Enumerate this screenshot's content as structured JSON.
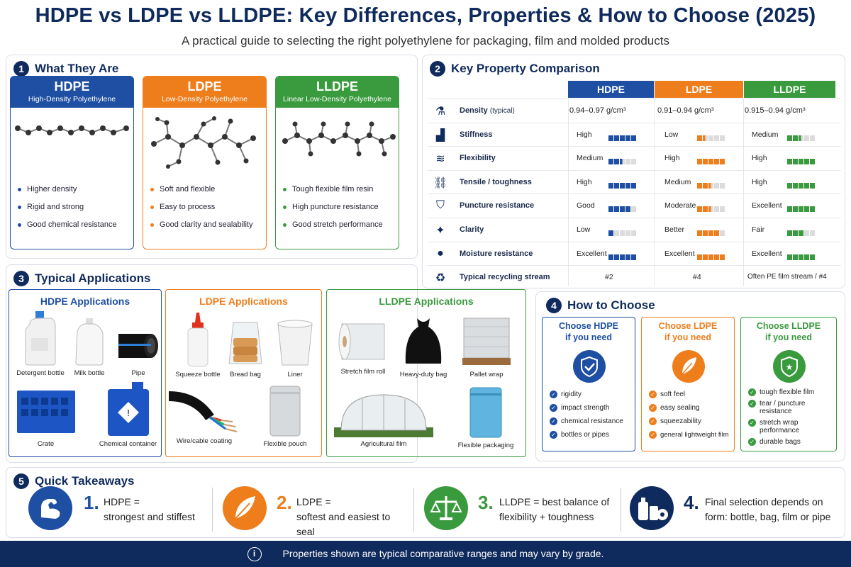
{
  "header": {
    "title": "HDPE vs LDPE vs LLDPE: Key Differences, Properties & How to Choose (2025)",
    "subtitle": "A practical guide to selecting the right polyethylene for packaging, film and molded products"
  },
  "colors": {
    "navy": "#0f2a5c",
    "hdpe": "#1e4fa3",
    "ldpe": "#ee7d1c",
    "lldpe": "#3a9a3e"
  },
  "section1": {
    "num": "1",
    "heading": "What They Are",
    "cards": [
      {
        "name": "HDPE",
        "full": "High-Density Polyethylene",
        "points": [
          "Higher density",
          "Rigid and strong",
          "Good chemical resistance"
        ]
      },
      {
        "name": "LDPE",
        "full": "Low-Density Polyethylene",
        "points": [
          "Soft and flexible",
          "Easy to process",
          "Good clarity and sealability"
        ]
      },
      {
        "name": "LLDPE",
        "full": "Linear Low-Density Polyethylene",
        "points": [
          "Tough flexible film resin",
          "High puncture resistance",
          "Good stretch performance"
        ]
      }
    ]
  },
  "section2": {
    "num": "2",
    "heading": "Key Property Comparison",
    "columns": [
      "HDPE",
      "LDPE",
      "LLDPE"
    ],
    "rows": [
      {
        "icon": "flask-icon",
        "label": "Density",
        "note": "(typical)",
        "values": [
          "0.94–0.97 g/cm³",
          "0.91–0.94 g/cm³",
          "0.915–0.94 g/cm³"
        ],
        "levels": null
      },
      {
        "icon": "bar-chart-icon",
        "label": "Stiffness",
        "values": [
          "High",
          "Low",
          "Medium"
        ],
        "levels": [
          5,
          1.5,
          2.5
        ]
      },
      {
        "icon": "wave-icon",
        "label": "Flexibility",
        "values": [
          "Medium",
          "High",
          "High"
        ],
        "levels": [
          2.5,
          5,
          5
        ]
      },
      {
        "icon": "link-icon",
        "label": "Tensile / toughness",
        "values": [
          "High",
          "Medium",
          "High"
        ],
        "levels": [
          5,
          2.5,
          5
        ]
      },
      {
        "icon": "shield-icon",
        "label": "Puncture resistance",
        "values": [
          "Good",
          "Moderate",
          "Excellent"
        ],
        "levels": [
          4,
          2.5,
          5
        ]
      },
      {
        "icon": "sparkle-icon",
        "label": "Clarity",
        "values": [
          "Low",
          "Better",
          "Fair"
        ],
        "levels": [
          1,
          4,
          3
        ]
      },
      {
        "icon": "droplet-icon",
        "label": "Moisture resistance",
        "values": [
          "Excellent",
          "Excellent",
          "Excellent"
        ],
        "levels": [
          5,
          5,
          5
        ]
      },
      {
        "icon": "recycle-icon",
        "label": "Typical recycling stream",
        "values": [
          "#2",
          "#4",
          "Often PE film stream / #4"
        ],
        "levels": null
      }
    ]
  },
  "section3": {
    "num": "3",
    "heading": "Typical Applications",
    "groups": [
      {
        "title": "HDPE Applications",
        "items": [
          "Detergent bottle",
          "Milk bottle",
          "Pipe",
          "Crate",
          "Chemical container"
        ]
      },
      {
        "title": "LDPE Applications",
        "items": [
          "Squeeze bottle",
          "Bread bag",
          "Liner",
          "Wire/cable coating",
          "Flexible pouch"
        ]
      },
      {
        "title": "LLDPE Applications",
        "items": [
          "Stretch film roll",
          "Heavy-duty bag",
          "Pallet wrap",
          "Agricultural film",
          "Flexible packaging"
        ]
      }
    ]
  },
  "section4": {
    "num": "4",
    "heading": "How to Choose",
    "cards": [
      {
        "line1": "Choose HDPE",
        "line2": "if you need",
        "points": [
          "rigidity",
          "impact strength",
          "chemical resistance",
          "bottles or pipes"
        ]
      },
      {
        "line1": "Choose LDPE",
        "line2": "if you need",
        "points": [
          "soft feel",
          "easy sealing",
          "squeezability",
          "general lightweight film"
        ]
      },
      {
        "line1": "Choose LLDPE",
        "line2": "if you need",
        "points": [
          "tough flexible film",
          "tear / puncture resistance",
          "stretch wrap performance",
          "durable bags"
        ]
      }
    ]
  },
  "section5": {
    "num": "5",
    "heading": "Quick Takeaways",
    "items": [
      {
        "n": "1.",
        "line1": "HDPE =",
        "line2": "strongest and stiffest"
      },
      {
        "n": "2.",
        "line1": "LDPE =",
        "line2": "softest and easiest to seal"
      },
      {
        "n": "3.",
        "line1": "LLDPE = best balance of",
        "line2": "flexibility + toughness"
      },
      {
        "n": "4.",
        "line1": "Final selection depends on",
        "line2": "form: bottle, bag, film or pipe"
      }
    ]
  },
  "footer": {
    "info_glyph": "i",
    "text": "Properties shown are typical comparative ranges and may vary by grade."
  }
}
